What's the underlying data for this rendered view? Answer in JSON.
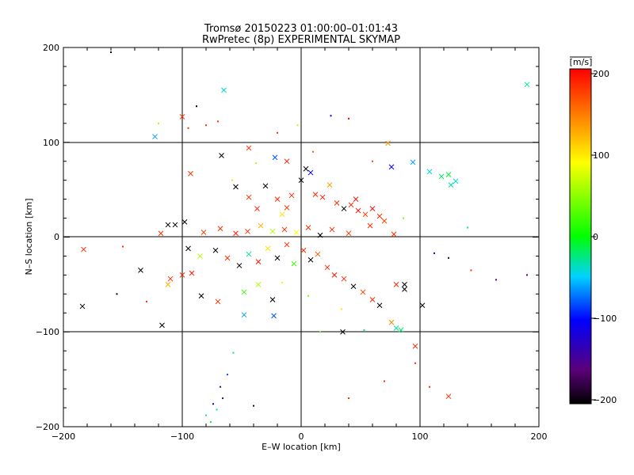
{
  "chart_data": {
    "type": "scatter",
    "title": "Tromsø 20150223 01:00:00–01:01:43",
    "subtitle": "RwPretec (8p) EXPERIMENTAL SKYMAP",
    "xlabel": "E–W location [km]",
    "ylabel": "N–S location [km]",
    "xlim": [
      -200,
      200
    ],
    "ylim": [
      -200,
      200
    ],
    "xticks": [
      -200,
      -100,
      0,
      100,
      200
    ],
    "yticks": [
      -200,
      -100,
      0,
      100,
      200
    ],
    "xtick_labels": [
      "−200",
      "−100",
      "0",
      "100",
      "200"
    ],
    "ytick_labels": [
      "−200",
      "−100",
      "0",
      "100",
      "200"
    ],
    "grid": "major lines at ±100 and 0",
    "colorbar": {
      "label": "[m/s]",
      "range": [
        -200,
        200
      ],
      "ticks": [
        200,
        100,
        0,
        -100,
        -200
      ],
      "tick_labels": [
        "200",
        "100",
        "0",
        "−100",
        "−200"
      ],
      "colormap": "black-purple-blue-cyan-green-yellow-orange-red"
    },
    "marker_styles": [
      "cross",
      "dot"
    ],
    "points": [
      {
        "x": -160,
        "y": 195,
        "v": -200,
        "m": "dot"
      },
      {
        "x": -65,
        "y": 155,
        "v": -40,
        "m": "cross"
      },
      {
        "x": -100,
        "y": 127,
        "v": 180,
        "m": "cross"
      },
      {
        "x": -88,
        "y": 138,
        "v": -200,
        "m": "dot"
      },
      {
        "x": -120,
        "y": 120,
        "v": 60,
        "m": "dot"
      },
      {
        "x": -123,
        "y": 106,
        "v": -60,
        "m": "cross"
      },
      {
        "x": -95,
        "y": 115,
        "v": 180,
        "m": "dot"
      },
      {
        "x": -80,
        "y": 118,
        "v": 180,
        "m": "dot"
      },
      {
        "x": -70,
        "y": 122,
        "v": 180,
        "m": "dot"
      },
      {
        "x": -3,
        "y": 118,
        "v": 60,
        "m": "dot"
      },
      {
        "x": 25,
        "y": 128,
        "v": -100,
        "m": "dot"
      },
      {
        "x": 40,
        "y": 125,
        "v": 200,
        "m": "dot"
      },
      {
        "x": 73,
        "y": 99,
        "v": 140,
        "m": "cross"
      },
      {
        "x": 190,
        "y": 161,
        "v": -30,
        "m": "cross"
      },
      {
        "x": -67,
        "y": 86,
        "v": -200,
        "m": "cross"
      },
      {
        "x": -44,
        "y": 94,
        "v": 180,
        "m": "cross"
      },
      {
        "x": -22,
        "y": 84,
        "v": -80,
        "m": "cross"
      },
      {
        "x": -12,
        "y": 80,
        "v": 190,
        "m": "cross"
      },
      {
        "x": -93,
        "y": 67,
        "v": 180,
        "m": "cross"
      },
      {
        "x": -55,
        "y": 53,
        "v": -200,
        "m": "cross"
      },
      {
        "x": -44,
        "y": 42,
        "v": 180,
        "m": "cross"
      },
      {
        "x": -37,
        "y": 30,
        "v": 190,
        "m": "cross"
      },
      {
        "x": -30,
        "y": 54,
        "v": -200,
        "m": "cross"
      },
      {
        "x": -20,
        "y": 40,
        "v": 180,
        "m": "cross"
      },
      {
        "x": -16,
        "y": 24,
        "v": 100,
        "m": "cross"
      },
      {
        "x": -12,
        "y": 31,
        "v": 170,
        "m": "cross"
      },
      {
        "x": -8,
        "y": 44,
        "v": 180,
        "m": "cross"
      },
      {
        "x": 0,
        "y": 60,
        "v": -200,
        "m": "cross"
      },
      {
        "x": 4,
        "y": 72,
        "v": -200,
        "m": "cross"
      },
      {
        "x": 8,
        "y": 68,
        "v": -100,
        "m": "cross"
      },
      {
        "x": 12,
        "y": 45,
        "v": 180,
        "m": "cross"
      },
      {
        "x": 18,
        "y": 42,
        "v": 190,
        "m": "cross"
      },
      {
        "x": 24,
        "y": 55,
        "v": 130,
        "m": "cross"
      },
      {
        "x": 30,
        "y": 36,
        "v": 180,
        "m": "cross"
      },
      {
        "x": 36,
        "y": 30,
        "v": -200,
        "m": "cross"
      },
      {
        "x": 42,
        "y": 34,
        "v": 180,
        "m": "cross"
      },
      {
        "x": 48,
        "y": 28,
        "v": 190,
        "m": "cross"
      },
      {
        "x": 54,
        "y": 24,
        "v": 170,
        "m": "cross"
      },
      {
        "x": 60,
        "y": 30,
        "v": 200,
        "m": "cross"
      },
      {
        "x": 66,
        "y": 22,
        "v": 180,
        "m": "cross"
      },
      {
        "x": 46,
        "y": 40,
        "v": 190,
        "m": "cross"
      },
      {
        "x": 58,
        "y": 12,
        "v": 180,
        "m": "cross"
      },
      {
        "x": 70,
        "y": 17,
        "v": 170,
        "m": "cross"
      },
      {
        "x": 76,
        "y": 74,
        "v": -100,
        "m": "cross"
      },
      {
        "x": 94,
        "y": 79,
        "v": -60,
        "m": "cross"
      },
      {
        "x": 108,
        "y": 69,
        "v": -40,
        "m": "cross"
      },
      {
        "x": 118,
        "y": 64,
        "v": -20,
        "m": "cross"
      },
      {
        "x": 124,
        "y": 66,
        "v": -10,
        "m": "cross"
      },
      {
        "x": 130,
        "y": 59,
        "v": -40,
        "m": "cross"
      },
      {
        "x": 126,
        "y": 55,
        "v": -30,
        "m": "cross"
      },
      {
        "x": 78,
        "y": 3,
        "v": 180,
        "m": "cross"
      },
      {
        "x": -112,
        "y": 13,
        "v": -200,
        "m": "cross"
      },
      {
        "x": -106,
        "y": 13,
        "v": -200,
        "m": "cross"
      },
      {
        "x": -98,
        "y": 16,
        "v": -200,
        "m": "cross"
      },
      {
        "x": -118,
        "y": 4,
        "v": 180,
        "m": "cross"
      },
      {
        "x": -82,
        "y": 5,
        "v": 170,
        "m": "cross"
      },
      {
        "x": -68,
        "y": 9,
        "v": 180,
        "m": "cross"
      },
      {
        "x": -55,
        "y": 4,
        "v": 190,
        "m": "cross"
      },
      {
        "x": -45,
        "y": 6,
        "v": 180,
        "m": "cross"
      },
      {
        "x": -34,
        "y": 12,
        "v": 120,
        "m": "cross"
      },
      {
        "x": -24,
        "y": 6,
        "v": 60,
        "m": "cross"
      },
      {
        "x": -14,
        "y": 8,
        "v": 180,
        "m": "cross"
      },
      {
        "x": -4,
        "y": 5,
        "v": 90,
        "m": "cross"
      },
      {
        "x": 6,
        "y": 10,
        "v": 180,
        "m": "cross"
      },
      {
        "x": 16,
        "y": 2,
        "v": -200,
        "m": "cross"
      },
      {
        "x": 26,
        "y": 8,
        "v": 180,
        "m": "cross"
      },
      {
        "x": 40,
        "y": 4,
        "v": 170,
        "m": "cross"
      },
      {
        "x": -183,
        "y": -13,
        "v": 180,
        "m": "cross"
      },
      {
        "x": -150,
        "y": -10,
        "v": 180,
        "m": "dot"
      },
      {
        "x": -95,
        "y": -12,
        "v": -200,
        "m": "cross"
      },
      {
        "x": -85,
        "y": -20,
        "v": 60,
        "m": "cross"
      },
      {
        "x": -72,
        "y": -14,
        "v": -200,
        "m": "cross"
      },
      {
        "x": -62,
        "y": -22,
        "v": 180,
        "m": "cross"
      },
      {
        "x": -52,
        "y": -30,
        "v": -200,
        "m": "cross"
      },
      {
        "x": -44,
        "y": -18,
        "v": -30,
        "m": "cross"
      },
      {
        "x": -36,
        "y": -26,
        "v": 190,
        "m": "cross"
      },
      {
        "x": -28,
        "y": -12,
        "v": 100,
        "m": "cross"
      },
      {
        "x": -20,
        "y": -22,
        "v": -200,
        "m": "cross"
      },
      {
        "x": -12,
        "y": -8,
        "v": 180,
        "m": "cross"
      },
      {
        "x": -6,
        "y": -28,
        "v": 20,
        "m": "cross"
      },
      {
        "x": 2,
        "y": -14,
        "v": 180,
        "m": "cross"
      },
      {
        "x": 8,
        "y": -24,
        "v": -200,
        "m": "cross"
      },
      {
        "x": 14,
        "y": -18,
        "v": 160,
        "m": "cross"
      },
      {
        "x": 22,
        "y": -32,
        "v": 180,
        "m": "cross"
      },
      {
        "x": 28,
        "y": -40,
        "v": 190,
        "m": "cross"
      },
      {
        "x": 36,
        "y": -44,
        "v": 180,
        "m": "cross"
      },
      {
        "x": 44,
        "y": -52,
        "v": -200,
        "m": "cross"
      },
      {
        "x": 52,
        "y": -58,
        "v": 170,
        "m": "cross"
      },
      {
        "x": 60,
        "y": -66,
        "v": 180,
        "m": "cross"
      },
      {
        "x": 66,
        "y": -72,
        "v": -200,
        "m": "cross"
      },
      {
        "x": -135,
        "y": -35,
        "v": -200,
        "m": "cross"
      },
      {
        "x": -112,
        "y": -50,
        "v": 120,
        "m": "cross"
      },
      {
        "x": -110,
        "y": -44,
        "v": 180,
        "m": "cross"
      },
      {
        "x": -100,
        "y": -40,
        "v": 180,
        "m": "cross"
      },
      {
        "x": -92,
        "y": -38,
        "v": 190,
        "m": "cross"
      },
      {
        "x": -84,
        "y": -62,
        "v": -200,
        "m": "cross"
      },
      {
        "x": -70,
        "y": -68,
        "v": 180,
        "m": "cross"
      },
      {
        "x": -48,
        "y": -58,
        "v": 20,
        "m": "cross"
      },
      {
        "x": -36,
        "y": -50,
        "v": 60,
        "m": "cross"
      },
      {
        "x": -24,
        "y": -66,
        "v": -200,
        "m": "cross"
      },
      {
        "x": -184,
        "y": -73,
        "v": -200,
        "m": "cross"
      },
      {
        "x": -117,
        "y": -93,
        "v": -200,
        "m": "cross"
      },
      {
        "x": -48,
        "y": -82,
        "v": -60,
        "m": "cross"
      },
      {
        "x": -23,
        "y": -83,
        "v": -80,
        "m": "cross"
      },
      {
        "x": 80,
        "y": -50,
        "v": 180,
        "m": "cross"
      },
      {
        "x": 87,
        "y": -50,
        "v": -200,
        "m": "cross"
      },
      {
        "x": 87,
        "y": -55,
        "v": -200,
        "m": "cross"
      },
      {
        "x": 102,
        "y": -72,
        "v": -200,
        "m": "cross"
      },
      {
        "x": 76,
        "y": -90,
        "v": 140,
        "m": "cross"
      },
      {
        "x": 80,
        "y": -96,
        "v": -30,
        "m": "cross"
      },
      {
        "x": 84,
        "y": -98,
        "v": -20,
        "m": "cross"
      },
      {
        "x": 35,
        "y": -100,
        "v": -200,
        "m": "cross"
      },
      {
        "x": 53,
        "y": -98,
        "v": -20,
        "m": "dot"
      },
      {
        "x": 96,
        "y": -115,
        "v": 180,
        "m": "cross"
      },
      {
        "x": 124,
        "y": -168,
        "v": 180,
        "m": "cross"
      },
      {
        "x": 96,
        "y": -133,
        "v": 180,
        "m": "dot"
      },
      {
        "x": 108,
        "y": -158,
        "v": 180,
        "m": "dot"
      },
      {
        "x": -57,
        "y": -122,
        "v": -20,
        "m": "dot"
      },
      {
        "x": -62,
        "y": -145,
        "v": -80,
        "m": "dot"
      },
      {
        "x": -66,
        "y": -170,
        "v": -150,
        "m": "dot"
      },
      {
        "x": -71,
        "y": -182,
        "v": -30,
        "m": "dot"
      },
      {
        "x": -76,
        "y": -195,
        "v": -10,
        "m": "dot"
      },
      {
        "x": -80,
        "y": -188,
        "v": -20,
        "m": "dot"
      },
      {
        "x": -74,
        "y": -176,
        "v": -120,
        "m": "dot"
      },
      {
        "x": -68,
        "y": -158,
        "v": -140,
        "m": "dot"
      },
      {
        "x": 190,
        "y": -40,
        "v": -160,
        "m": "dot"
      },
      {
        "x": 164,
        "y": -45,
        "v": -160,
        "m": "dot"
      },
      {
        "x": 143,
        "y": -35,
        "v": 180,
        "m": "dot"
      },
      {
        "x": 112,
        "y": -17,
        "v": -100,
        "m": "dot"
      },
      {
        "x": 124,
        "y": -22,
        "v": -180,
        "m": "dot"
      },
      {
        "x": 140,
        "y": 10,
        "v": -30,
        "m": "dot"
      },
      {
        "x": -20,
        "y": 110,
        "v": 180,
        "m": "dot"
      },
      {
        "x": 10,
        "y": 90,
        "v": 160,
        "m": "dot"
      },
      {
        "x": 60,
        "y": 80,
        "v": 170,
        "m": "dot"
      },
      {
        "x": -58,
        "y": 60,
        "v": 100,
        "m": "dot"
      },
      {
        "x": -38,
        "y": 78,
        "v": 60,
        "m": "dot"
      },
      {
        "x": 86,
        "y": 20,
        "v": 40,
        "m": "dot"
      },
      {
        "x": 34,
        "y": -76,
        "v": 100,
        "m": "dot"
      },
      {
        "x": 6,
        "y": -62,
        "v": 40,
        "m": "dot"
      },
      {
        "x": -16,
        "y": -48,
        "v": 80,
        "m": "dot"
      },
      {
        "x": -130,
        "y": -68,
        "v": 180,
        "m": "dot"
      },
      {
        "x": -155,
        "y": -60,
        "v": -200,
        "m": "dot"
      },
      {
        "x": -40,
        "y": -178,
        "v": -200,
        "m": "dot"
      },
      {
        "x": 40,
        "y": -170,
        "v": 180,
        "m": "dot"
      },
      {
        "x": 70,
        "y": -152,
        "v": 180,
        "m": "dot"
      },
      {
        "x": 16,
        "y": -100,
        "v": 20,
        "m": "dot"
      }
    ]
  }
}
